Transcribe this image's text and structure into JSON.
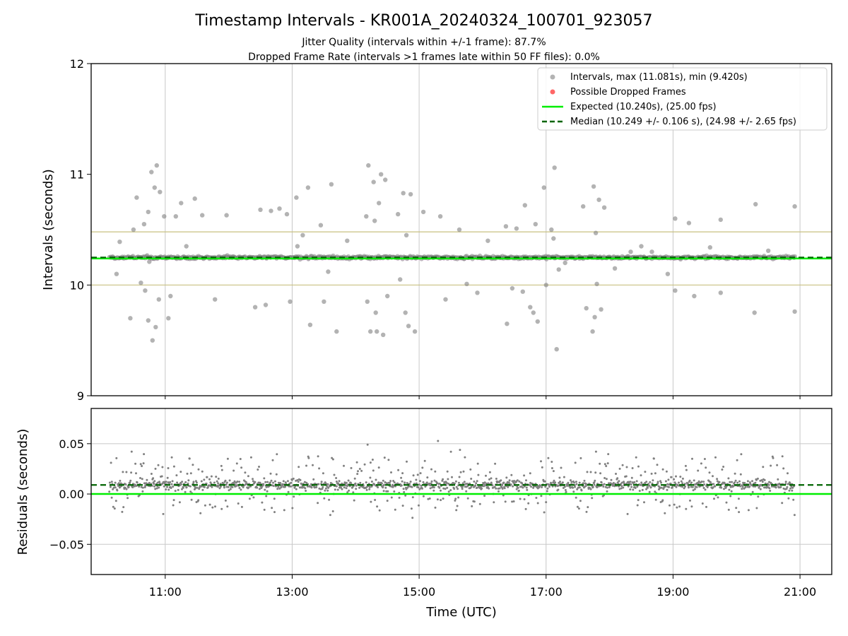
{
  "title": "Timestamp Intervals - KR001A_20240324_100701_923057",
  "subtitle_lines": [
    "Jitter Quality (intervals within +/-1 frame): 87.7%",
    "Dropped Frame Rate (intervals >1 frames late within 50 FF files): 0.0%"
  ],
  "colors": {
    "points": "#808080",
    "dropped": "#ff0000",
    "expected": "#00ee00",
    "median": "#006400",
    "tolerance": "#c8c080",
    "grid": "#c8c8c8"
  },
  "chart_data": [
    {
      "type": "scatter",
      "panel": "intervals",
      "ylabel": "Intervals (seconds)",
      "xlabel": "",
      "xlim": [
        "09:50",
        "21:30"
      ],
      "ylim": [
        9,
        12
      ],
      "yticks": [
        9,
        10,
        11,
        12
      ],
      "xticks": [
        "11:00",
        "13:00",
        "15:00",
        "17:00",
        "19:00",
        "21:00"
      ],
      "grid": "vertical",
      "legend": {
        "placement": "top-right",
        "entries": [
          {
            "label": "Intervals, max (11.081s), min (9.420s)",
            "kind": "marker",
            "color": "#808080"
          },
          {
            "label": "Possible Dropped Frames",
            "kind": "marker",
            "color": "#ff0000"
          },
          {
            "label": "Expected (10.240s), (25.00 fps)",
            "kind": "line",
            "color": "#00ee00"
          },
          {
            "label": "Median (10.249 +/- 0.106 s), (24.98 +/- 2.65 fps)",
            "kind": "dashed",
            "color": "#006400"
          }
        ]
      },
      "expected": 10.24,
      "median": 10.249,
      "tolerance": [
        10.0,
        10.48
      ],
      "time_range": [
        "10:07",
        "20:55"
      ],
      "baseline_spread": 0.02,
      "outliers": [
        {
          "x": "10:47",
          "y": 11.02
        },
        {
          "x": "10:52",
          "y": 11.08
        },
        {
          "x": "10:55",
          "y": 10.84
        },
        {
          "x": "10:44",
          "y": 10.66
        },
        {
          "x": "10:50",
          "y": 10.88
        },
        {
          "x": "10:40",
          "y": 10.55
        },
        {
          "x": "10:33",
          "y": 10.79
        },
        {
          "x": "10:45",
          "y": 10.21
        },
        {
          "x": "10:48",
          "y": 9.5
        },
        {
          "x": "10:51",
          "y": 9.62
        },
        {
          "x": "10:44",
          "y": 9.68
        },
        {
          "x": "10:41",
          "y": 9.95
        },
        {
          "x": "10:37",
          "y": 10.02
        },
        {
          "x": "10:54",
          "y": 9.87
        },
        {
          "x": "11:03",
          "y": 9.7
        },
        {
          "x": "11:10",
          "y": 10.62
        },
        {
          "x": "11:15",
          "y": 10.74
        },
        {
          "x": "11:20",
          "y": 10.35
        },
        {
          "x": "11:05",
          "y": 9.9
        },
        {
          "x": "11:35",
          "y": 10.63
        },
        {
          "x": "11:47",
          "y": 9.87
        },
        {
          "x": "10:27",
          "y": 9.7
        },
        {
          "x": "10:30",
          "y": 10.5
        },
        {
          "x": "10:14",
          "y": 10.1
        },
        {
          "x": "10:17",
          "y": 10.39
        },
        {
          "x": "10:59",
          "y": 10.62
        },
        {
          "x": "11:28",
          "y": 10.78
        },
        {
          "x": "11:58",
          "y": 10.63
        },
        {
          "x": "12:30",
          "y": 10.68
        },
        {
          "x": "12:40",
          "y": 10.67
        },
        {
          "x": "12:48",
          "y": 10.69
        },
        {
          "x": "12:55",
          "y": 10.64
        },
        {
          "x": "13:04",
          "y": 10.79
        },
        {
          "x": "13:15",
          "y": 10.88
        },
        {
          "x": "13:27",
          "y": 10.54
        },
        {
          "x": "13:37",
          "y": 10.91
        },
        {
          "x": "12:25",
          "y": 9.8
        },
        {
          "x": "12:35",
          "y": 9.82
        },
        {
          "x": "12:58",
          "y": 9.85
        },
        {
          "x": "13:17",
          "y": 9.64
        },
        {
          "x": "13:42",
          "y": 9.58
        },
        {
          "x": "13:30",
          "y": 9.85
        },
        {
          "x": "13:05",
          "y": 10.35
        },
        {
          "x": "13:10",
          "y": 10.45
        },
        {
          "x": "13:34",
          "y": 10.12
        },
        {
          "x": "13:52",
          "y": 10.4
        },
        {
          "x": "14:10",
          "y": 10.62
        },
        {
          "x": "14:12",
          "y": 11.08
        },
        {
          "x": "14:17",
          "y": 10.93
        },
        {
          "x": "14:24",
          "y": 11.0
        },
        {
          "x": "14:28",
          "y": 10.95
        },
        {
          "x": "14:22",
          "y": 10.74
        },
        {
          "x": "14:18",
          "y": 10.58
        },
        {
          "x": "14:05",
          "y": 10.24
        },
        {
          "x": "14:14",
          "y": 9.58
        },
        {
          "x": "14:20",
          "y": 9.58
        },
        {
          "x": "14:26",
          "y": 9.55
        },
        {
          "x": "14:19",
          "y": 9.75
        },
        {
          "x": "14:11",
          "y": 9.85
        },
        {
          "x": "14:30",
          "y": 9.9
        },
        {
          "x": "14:45",
          "y": 10.83
        },
        {
          "x": "14:52",
          "y": 10.82
        },
        {
          "x": "14:40",
          "y": 10.64
        },
        {
          "x": "14:48",
          "y": 10.45
        },
        {
          "x": "14:42",
          "y": 10.05
        },
        {
          "x": "14:47",
          "y": 9.75
        },
        {
          "x": "14:56",
          "y": 9.58
        },
        {
          "x": "14:50",
          "y": 9.63
        },
        {
          "x": "15:04",
          "y": 10.66
        },
        {
          "x": "15:20",
          "y": 10.62
        },
        {
          "x": "15:25",
          "y": 9.87
        },
        {
          "x": "15:38",
          "y": 10.5
        },
        {
          "x": "15:45",
          "y": 10.01
        },
        {
          "x": "15:55",
          "y": 9.93
        },
        {
          "x": "16:05",
          "y": 10.4
        },
        {
          "x": "16:22",
          "y": 10.53
        },
        {
          "x": "16:28",
          "y": 9.97
        },
        {
          "x": "16:40",
          "y": 10.72
        },
        {
          "x": "16:50",
          "y": 10.55
        },
        {
          "x": "16:58",
          "y": 10.88
        },
        {
          "x": "16:32",
          "y": 10.51
        },
        {
          "x": "16:38",
          "y": 9.94
        },
        {
          "x": "16:45",
          "y": 9.8
        },
        {
          "x": "16:23",
          "y": 9.65
        },
        {
          "x": "16:48",
          "y": 9.75
        },
        {
          "x": "16:52",
          "y": 9.67
        },
        {
          "x": "17:08",
          "y": 11.06
        },
        {
          "x": "17:07",
          "y": 10.42
        },
        {
          "x": "17:05",
          "y": 10.5
        },
        {
          "x": "17:10",
          "y": 9.42
        },
        {
          "x": "17:00",
          "y": 10.0
        },
        {
          "x": "17:12",
          "y": 10.14
        },
        {
          "x": "17:18",
          "y": 10.2
        },
        {
          "x": "17:35",
          "y": 10.71
        },
        {
          "x": "17:45",
          "y": 10.89
        },
        {
          "x": "17:50",
          "y": 10.77
        },
        {
          "x": "17:55",
          "y": 10.7
        },
        {
          "x": "17:47",
          "y": 10.47
        },
        {
          "x": "17:38",
          "y": 9.79
        },
        {
          "x": "17:52",
          "y": 9.78
        },
        {
          "x": "17:48",
          "y": 10.01
        },
        {
          "x": "17:44",
          "y": 9.58
        },
        {
          "x": "17:46",
          "y": 9.71
        },
        {
          "x": "18:20",
          "y": 10.3
        },
        {
          "x": "18:30",
          "y": 10.35
        },
        {
          "x": "18:40",
          "y": 10.3
        },
        {
          "x": "19:02",
          "y": 10.6
        },
        {
          "x": "19:15",
          "y": 10.56
        },
        {
          "x": "19:02",
          "y": 9.95
        },
        {
          "x": "19:20",
          "y": 9.9
        },
        {
          "x": "19:45",
          "y": 10.59
        },
        {
          "x": "19:45",
          "y": 9.93
        },
        {
          "x": "20:18",
          "y": 10.73
        },
        {
          "x": "20:17",
          "y": 9.75
        },
        {
          "x": "20:55",
          "y": 10.71
        },
        {
          "x": "20:55",
          "y": 9.76
        },
        {
          "x": "18:55",
          "y": 10.1
        },
        {
          "x": "18:05",
          "y": 10.15
        },
        {
          "x": "19:35",
          "y": 10.34
        },
        {
          "x": "20:30",
          "y": 10.31
        }
      ]
    },
    {
      "type": "scatter",
      "panel": "residuals",
      "ylabel": "Residuals (seconds)",
      "xlabel": "Time (UTC)",
      "xlim": [
        "09:50",
        "21:30"
      ],
      "ylim": [
        -0.08,
        0.085
      ],
      "yticks": [
        0.05,
        0.0,
        -0.05
      ],
      "ytick_labels": [
        "0.05",
        "0.00",
        "−0.05"
      ],
      "xticks": [
        "11:00",
        "13:00",
        "15:00",
        "17:00",
        "19:00",
        "21:00"
      ],
      "grid": "both",
      "expected": 0.0,
      "median": 0.009,
      "time_range": [
        "10:07",
        "20:55"
      ],
      "baseline_spread": 0.008,
      "wide_spread": 0.055
    }
  ]
}
